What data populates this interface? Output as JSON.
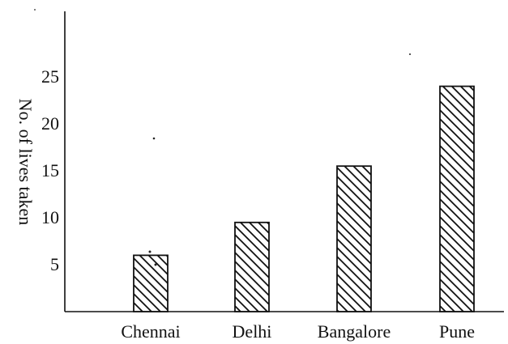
{
  "chart_data": {
    "type": "bar",
    "title": "",
    "xlabel": "",
    "ylabel": "No. of lives taken",
    "categories": [
      "Chennai",
      "Delhi",
      "Bangalore",
      "Pune"
    ],
    "values": [
      6,
      9.5,
      15.5,
      24
    ],
    "yticks": [
      "5",
      "10",
      "15",
      "20",
      "25"
    ],
    "ylim": [
      0,
      32
    ],
    "grid": false,
    "legend": "none",
    "bar_fill": "diagonal-hatch",
    "colors": {
      "ink": "#111111",
      "background": "#ffffff"
    }
  }
}
